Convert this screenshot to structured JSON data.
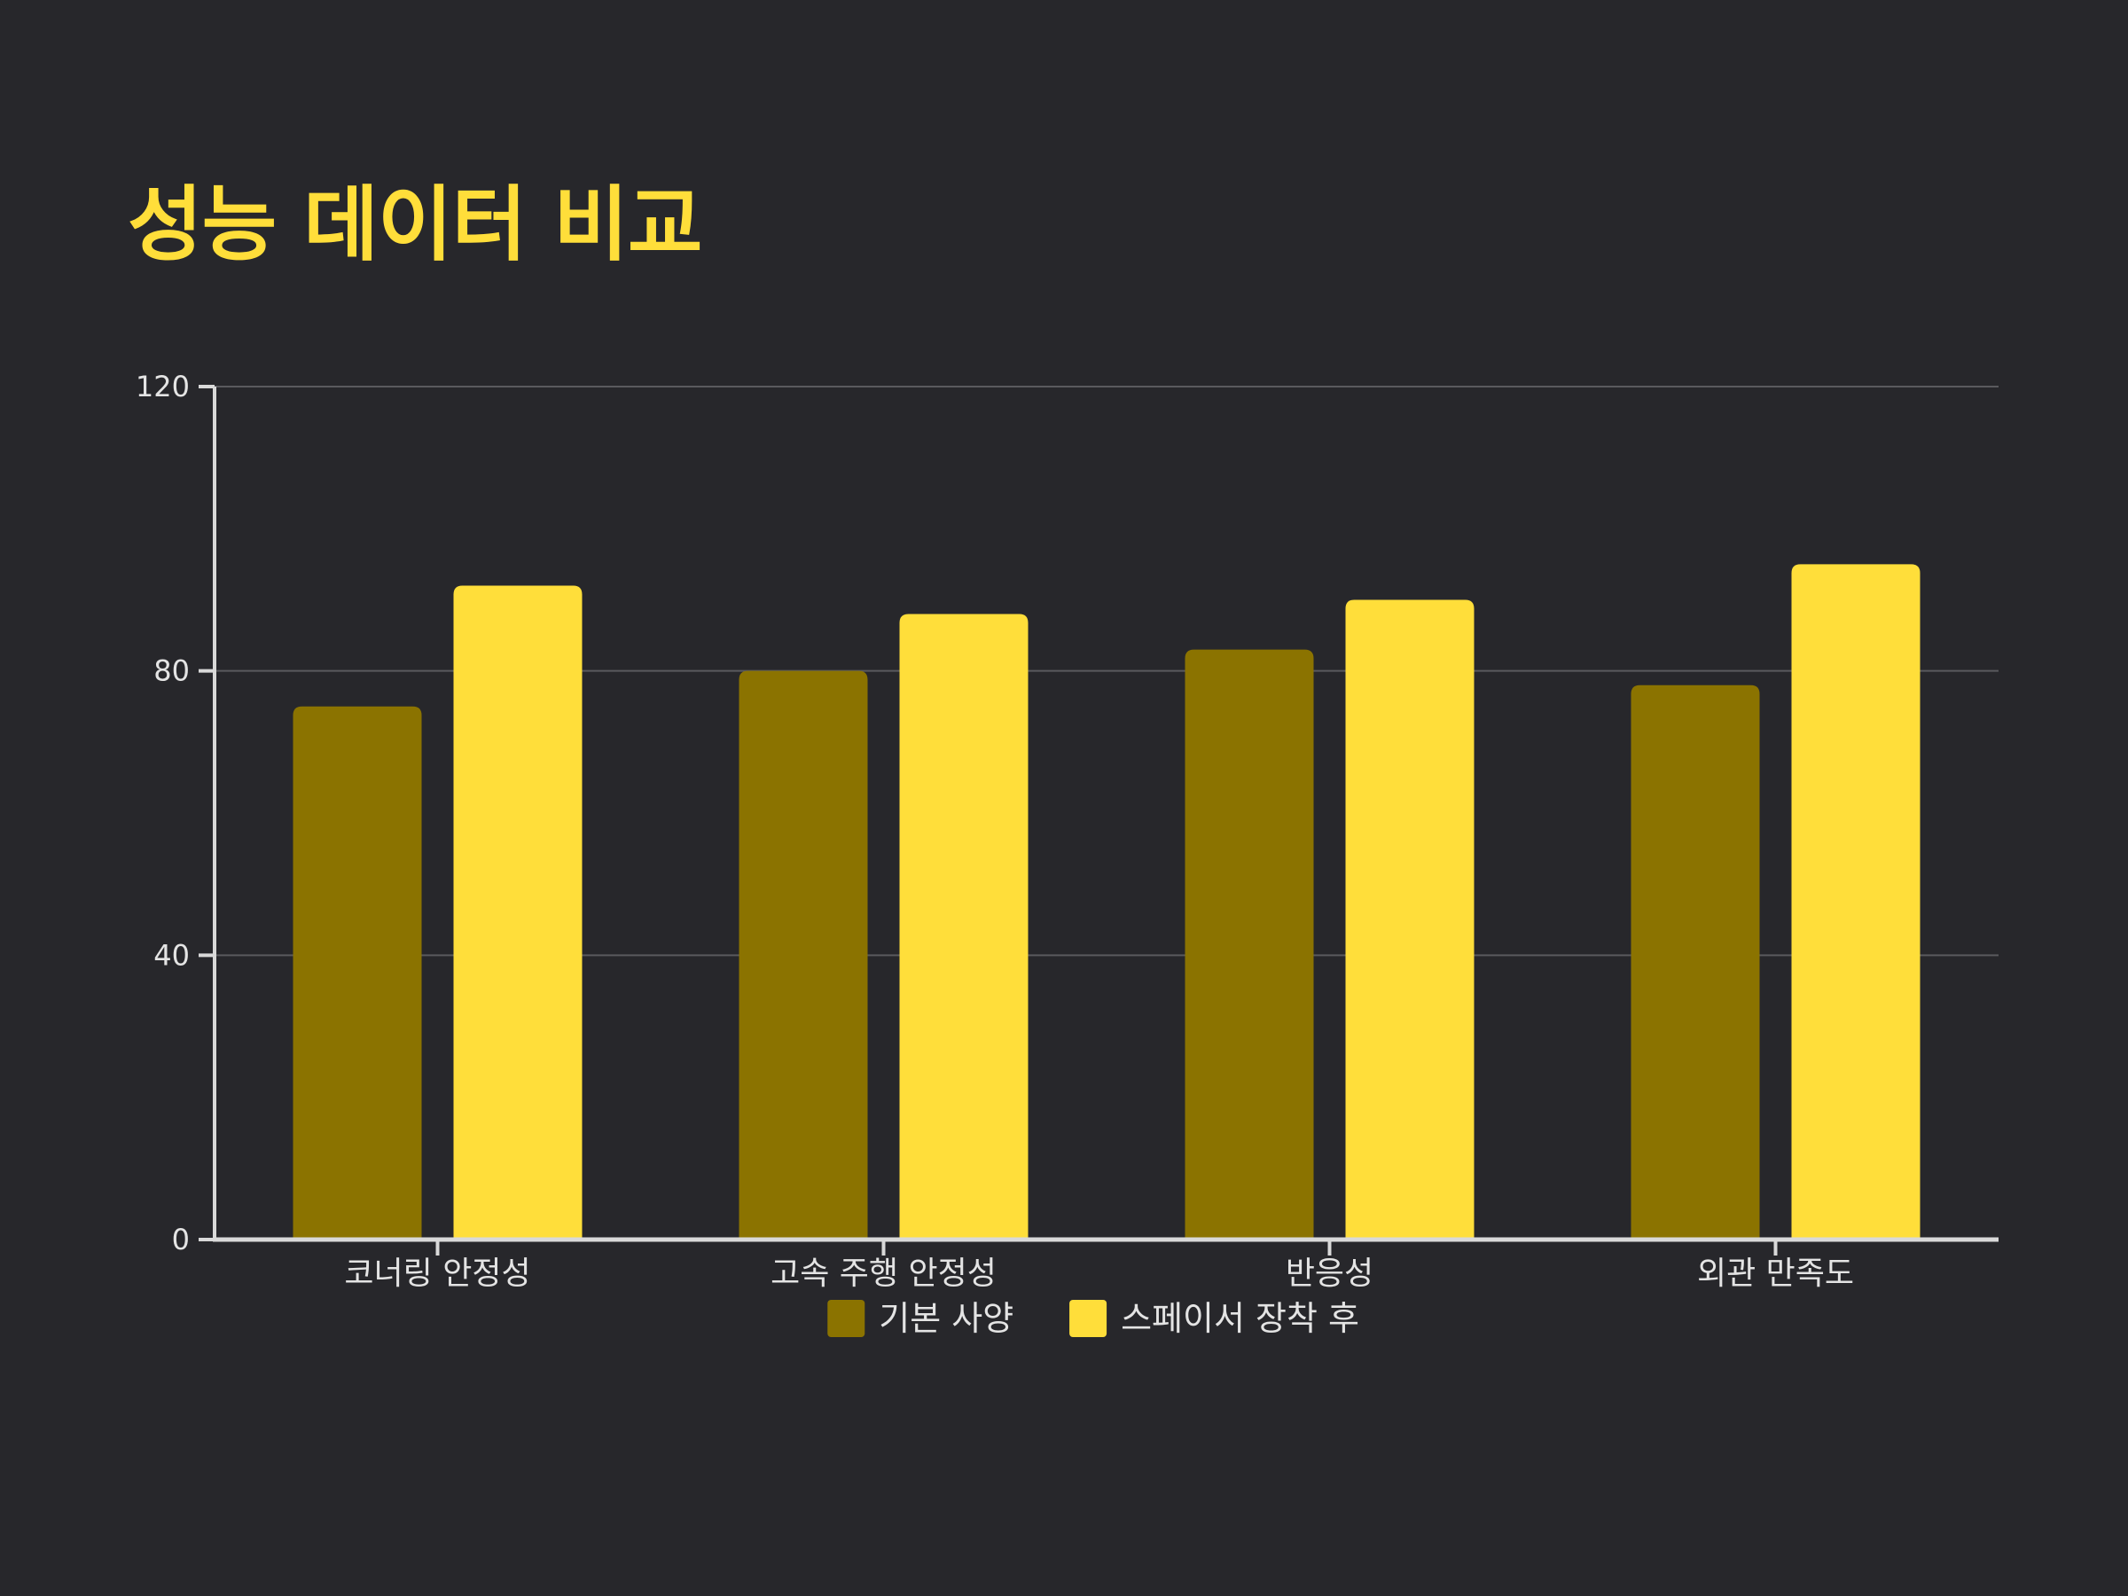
{
  "colors": {
    "background": "#27272b",
    "title": "#ffde3a",
    "axis": "#d9d9d9",
    "grid": "#5a5a5e",
    "text": "#e4e4e4"
  },
  "chart_data": {
    "type": "bar",
    "title": "성능 데이터 비교",
    "xlabel": "",
    "ylabel": "",
    "categories": [
      "코너링 안정성",
      "고속 주행 안정성",
      "반응성",
      "외관 만족도"
    ],
    "series": [
      {
        "name": "기본 사양",
        "color": "#8b7300",
        "values": [
          75,
          80,
          83,
          78
        ]
      },
      {
        "name": "스페이서 장착 후",
        "color": "#ffde3a",
        "values": [
          92,
          88,
          90,
          95
        ]
      }
    ],
    "ylim": [
      0,
      120
    ],
    "yticks": [
      0,
      40,
      80,
      120
    ],
    "grid": true,
    "legend_position": "bottom-center"
  }
}
